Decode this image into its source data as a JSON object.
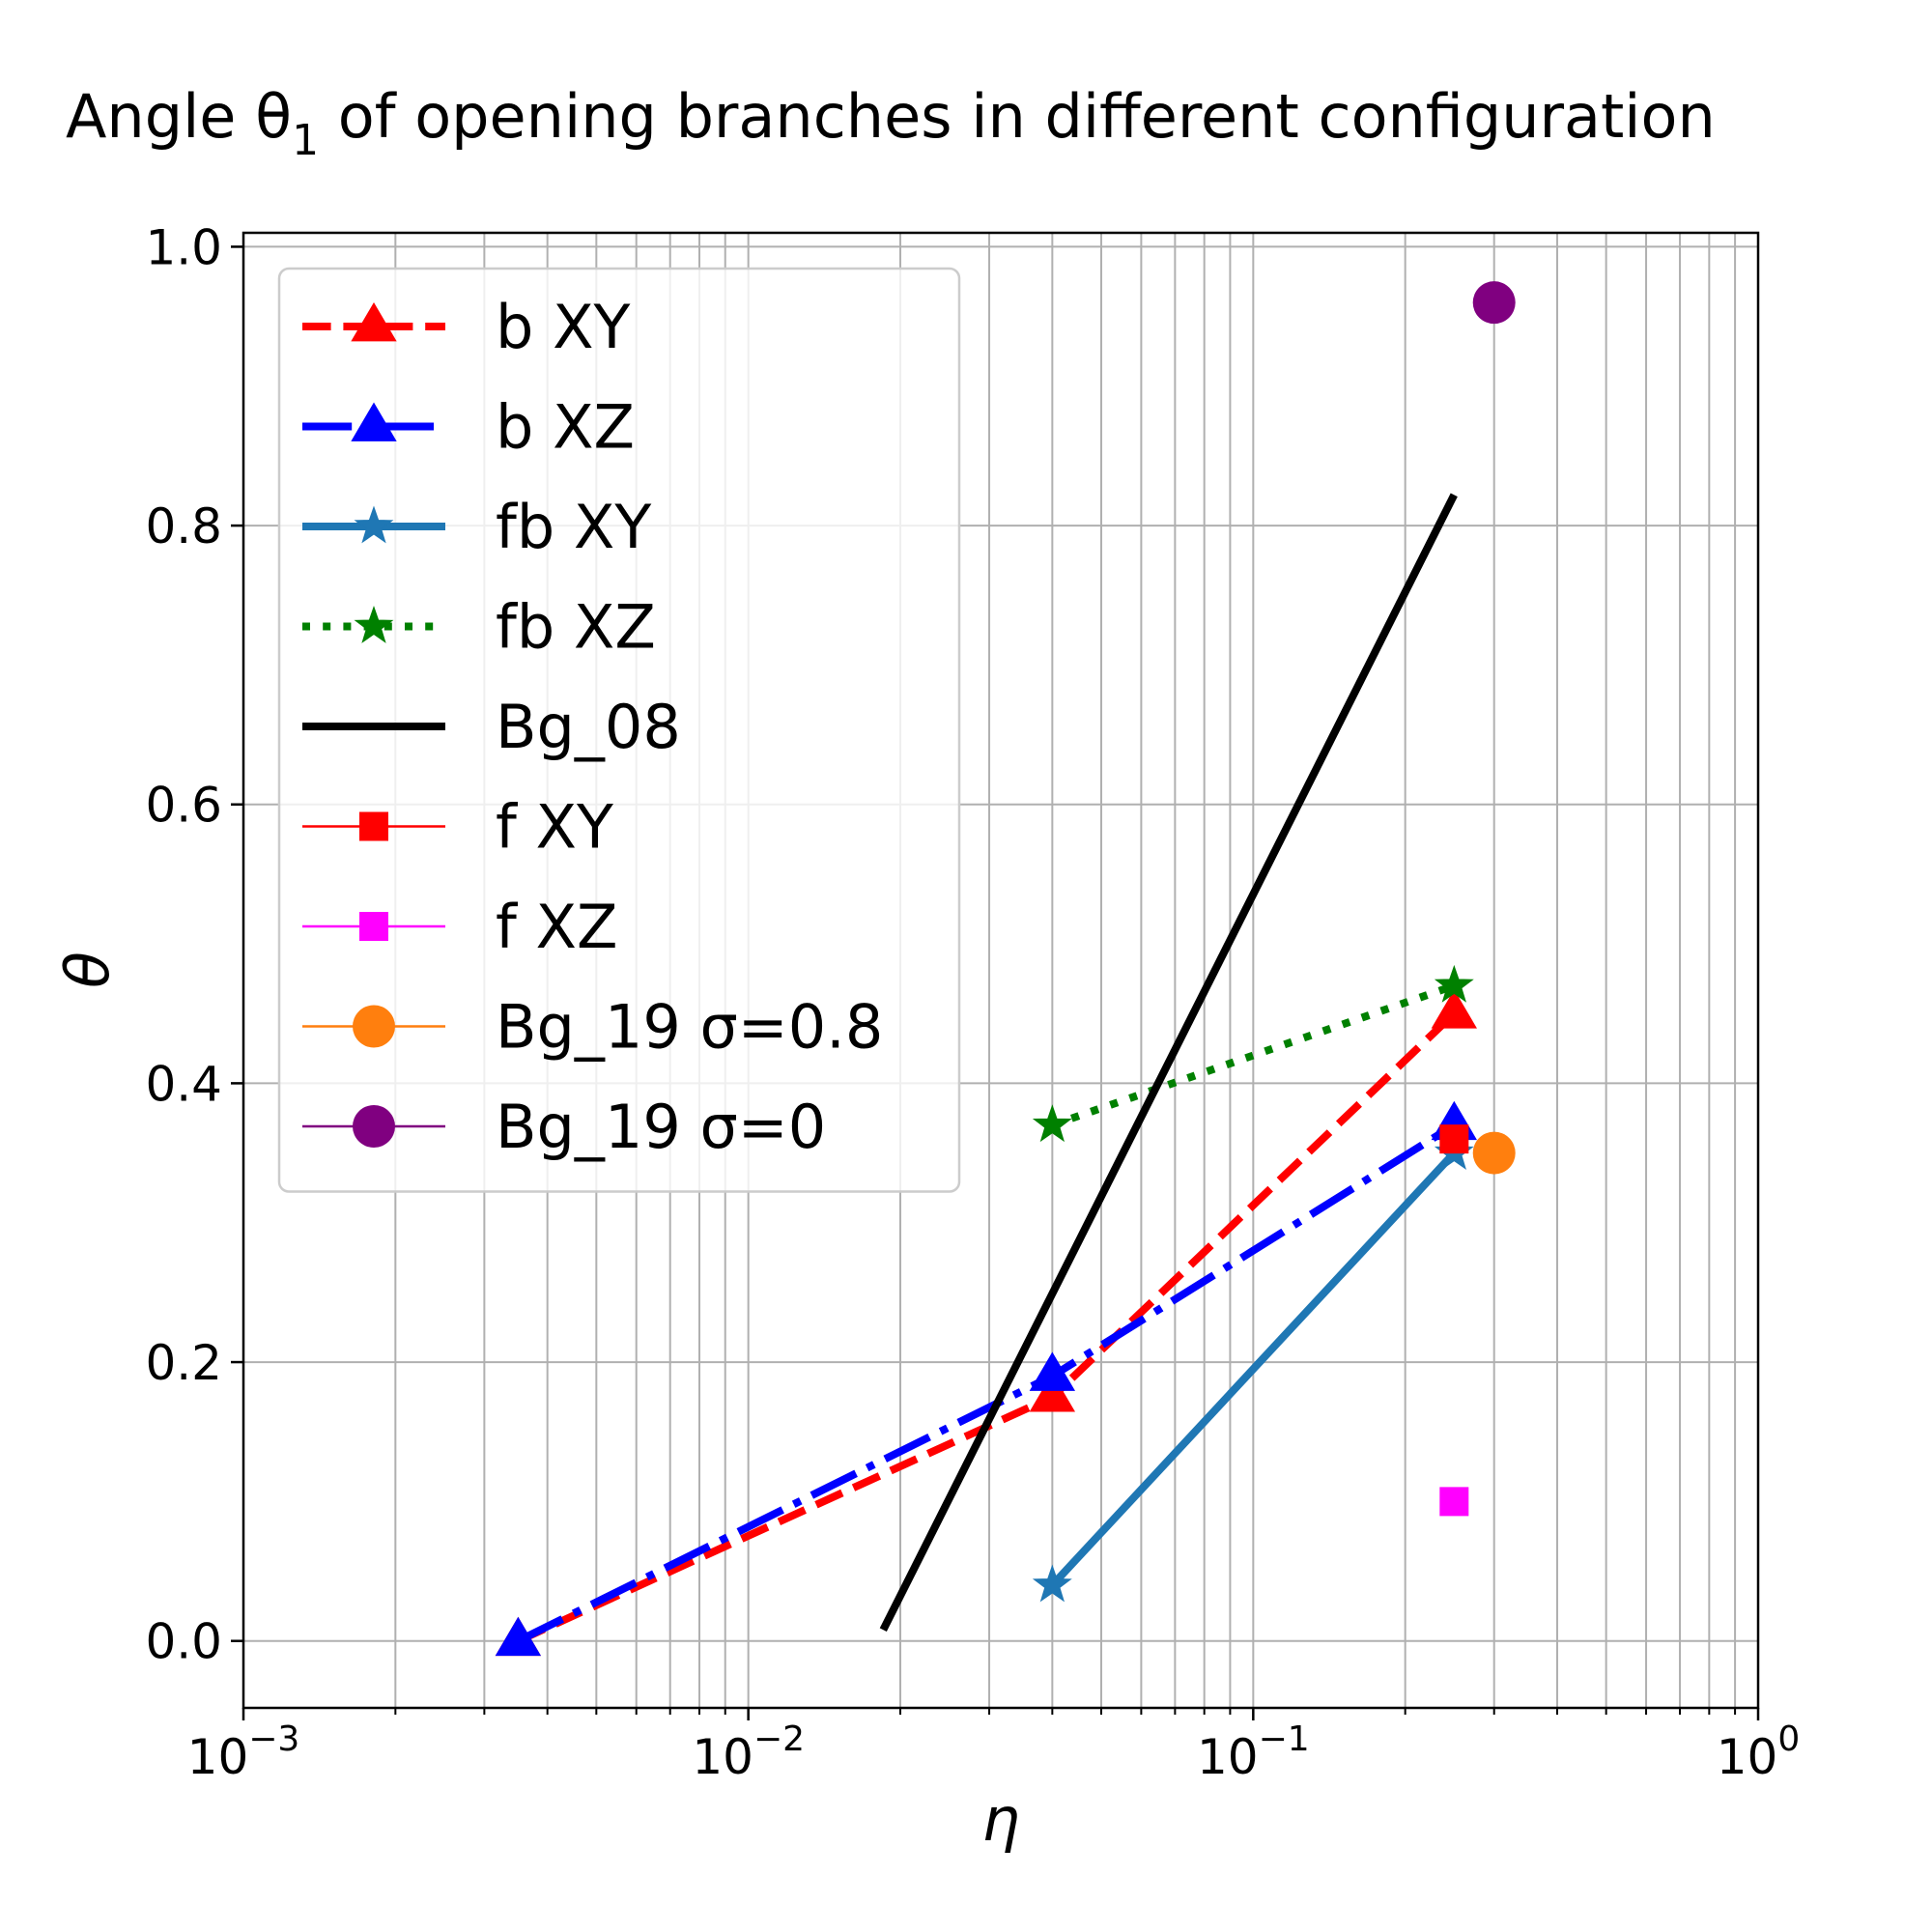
{
  "chart_data": {
    "type": "line",
    "title_main": "Angle θ",
    "title_sub": "1",
    "title_rest": " of opening branches in different configuration",
    "xlabel": "η",
    "ylabel": "θ",
    "xscale": "log",
    "xlim": [
      0.001,
      1
    ],
    "ylim": [
      -0.048,
      1.01
    ],
    "grid": true,
    "legend_position": "upper-left",
    "x_ticks": [
      {
        "value": 0.001,
        "base": "10",
        "exp": "−3"
      },
      {
        "value": 0.01,
        "base": "10",
        "exp": "−2"
      },
      {
        "value": 0.1,
        "base": "10",
        "exp": "−1"
      },
      {
        "value": 1,
        "base": "10",
        "exp": "0"
      }
    ],
    "y_ticks": [
      {
        "value": 0.0,
        "label": "0.0"
      },
      {
        "value": 0.2,
        "label": "0.2"
      },
      {
        "value": 0.4,
        "label": "0.4"
      },
      {
        "value": 0.6,
        "label": "0.6"
      },
      {
        "value": 0.8,
        "label": "0.8"
      },
      {
        "value": 1.0,
        "label": "1.0"
      }
    ],
    "series": [
      {
        "name": "b XY",
        "color": "#ff0000",
        "dash": "dashed",
        "marker": "triangle",
        "line": true,
        "x": [
          0.0035,
          0.04,
          0.25
        ],
        "y": [
          0.0,
          0.175,
          0.45
        ]
      },
      {
        "name": "b XZ",
        "color": "#0000ff",
        "dash": "dashdot",
        "marker": "triangle",
        "line": true,
        "x": [
          0.0035,
          0.04,
          0.25
        ],
        "y": [
          0.0,
          0.19,
          0.37
        ]
      },
      {
        "name": "fb XY",
        "color": "#1f77b4",
        "dash": "solid",
        "marker": "star",
        "line": true,
        "x": [
          0.04,
          0.25
        ],
        "y": [
          0.04,
          0.35
        ]
      },
      {
        "name": "fb XZ",
        "color": "#008000",
        "dash": "dotted",
        "marker": "star",
        "line": true,
        "x": [
          0.04,
          0.25
        ],
        "y": [
          0.37,
          0.47
        ]
      },
      {
        "name": "Bg_08",
        "color": "#000000",
        "dash": "solid",
        "marker": "none",
        "line": true,
        "x": [
          0.0185,
          0.25
        ],
        "y": [
          0.008,
          0.822
        ]
      },
      {
        "name": "f XY",
        "color": "#ff0000",
        "dash": "solid",
        "marker": "square",
        "line": true,
        "x": [
          0.25
        ],
        "y": [
          0.36
        ]
      },
      {
        "name": "f XZ",
        "color": "#ff00ff",
        "dash": "solid",
        "marker": "square",
        "line": true,
        "x": [
          0.25
        ],
        "y": [
          0.1
        ]
      },
      {
        "name": "Bg_19 σ=0.8",
        "color": "#ff7f0e",
        "dash": "solid",
        "marker": "circle",
        "line": true,
        "x": [
          0.3
        ],
        "y": [
          0.35
        ]
      },
      {
        "name": "Bg_19 σ=0",
        "color": "#800080",
        "dash": "solid",
        "marker": "circle",
        "line": true,
        "x": [
          0.3
        ],
        "y": [
          0.96
        ]
      }
    ]
  }
}
